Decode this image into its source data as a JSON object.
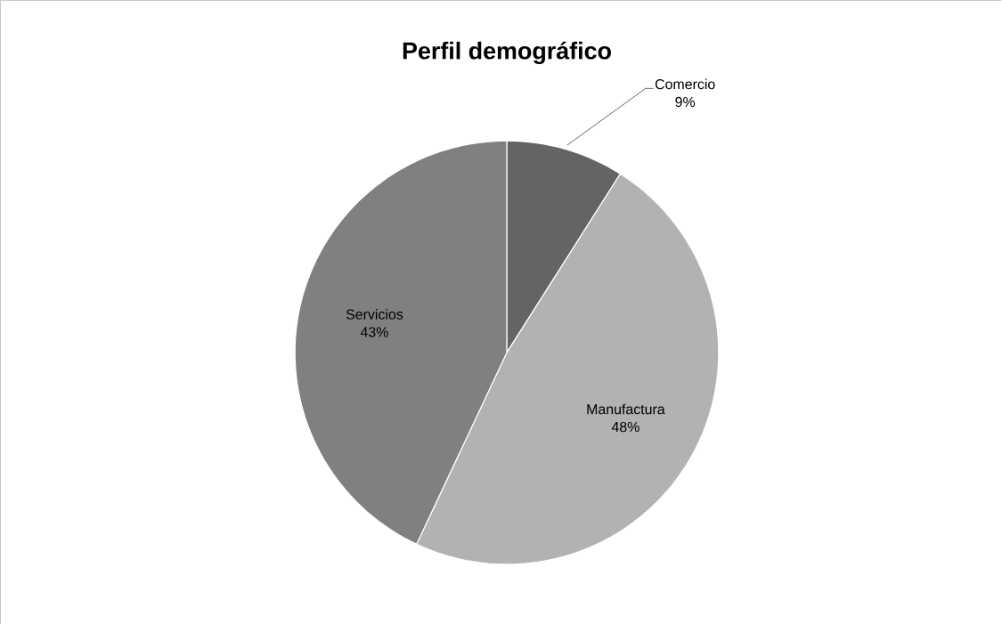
{
  "chart_data": {
    "type": "pie",
    "title": "Perfil demográfico",
    "categories": [
      "Comercio",
      "Manufactura",
      "Servicios"
    ],
    "values": [
      9,
      48,
      43
    ],
    "colors": [
      "#646464",
      "#b2b2b2",
      "#808080"
    ],
    "value_labels": [
      "9%",
      "48%",
      "43%"
    ]
  }
}
